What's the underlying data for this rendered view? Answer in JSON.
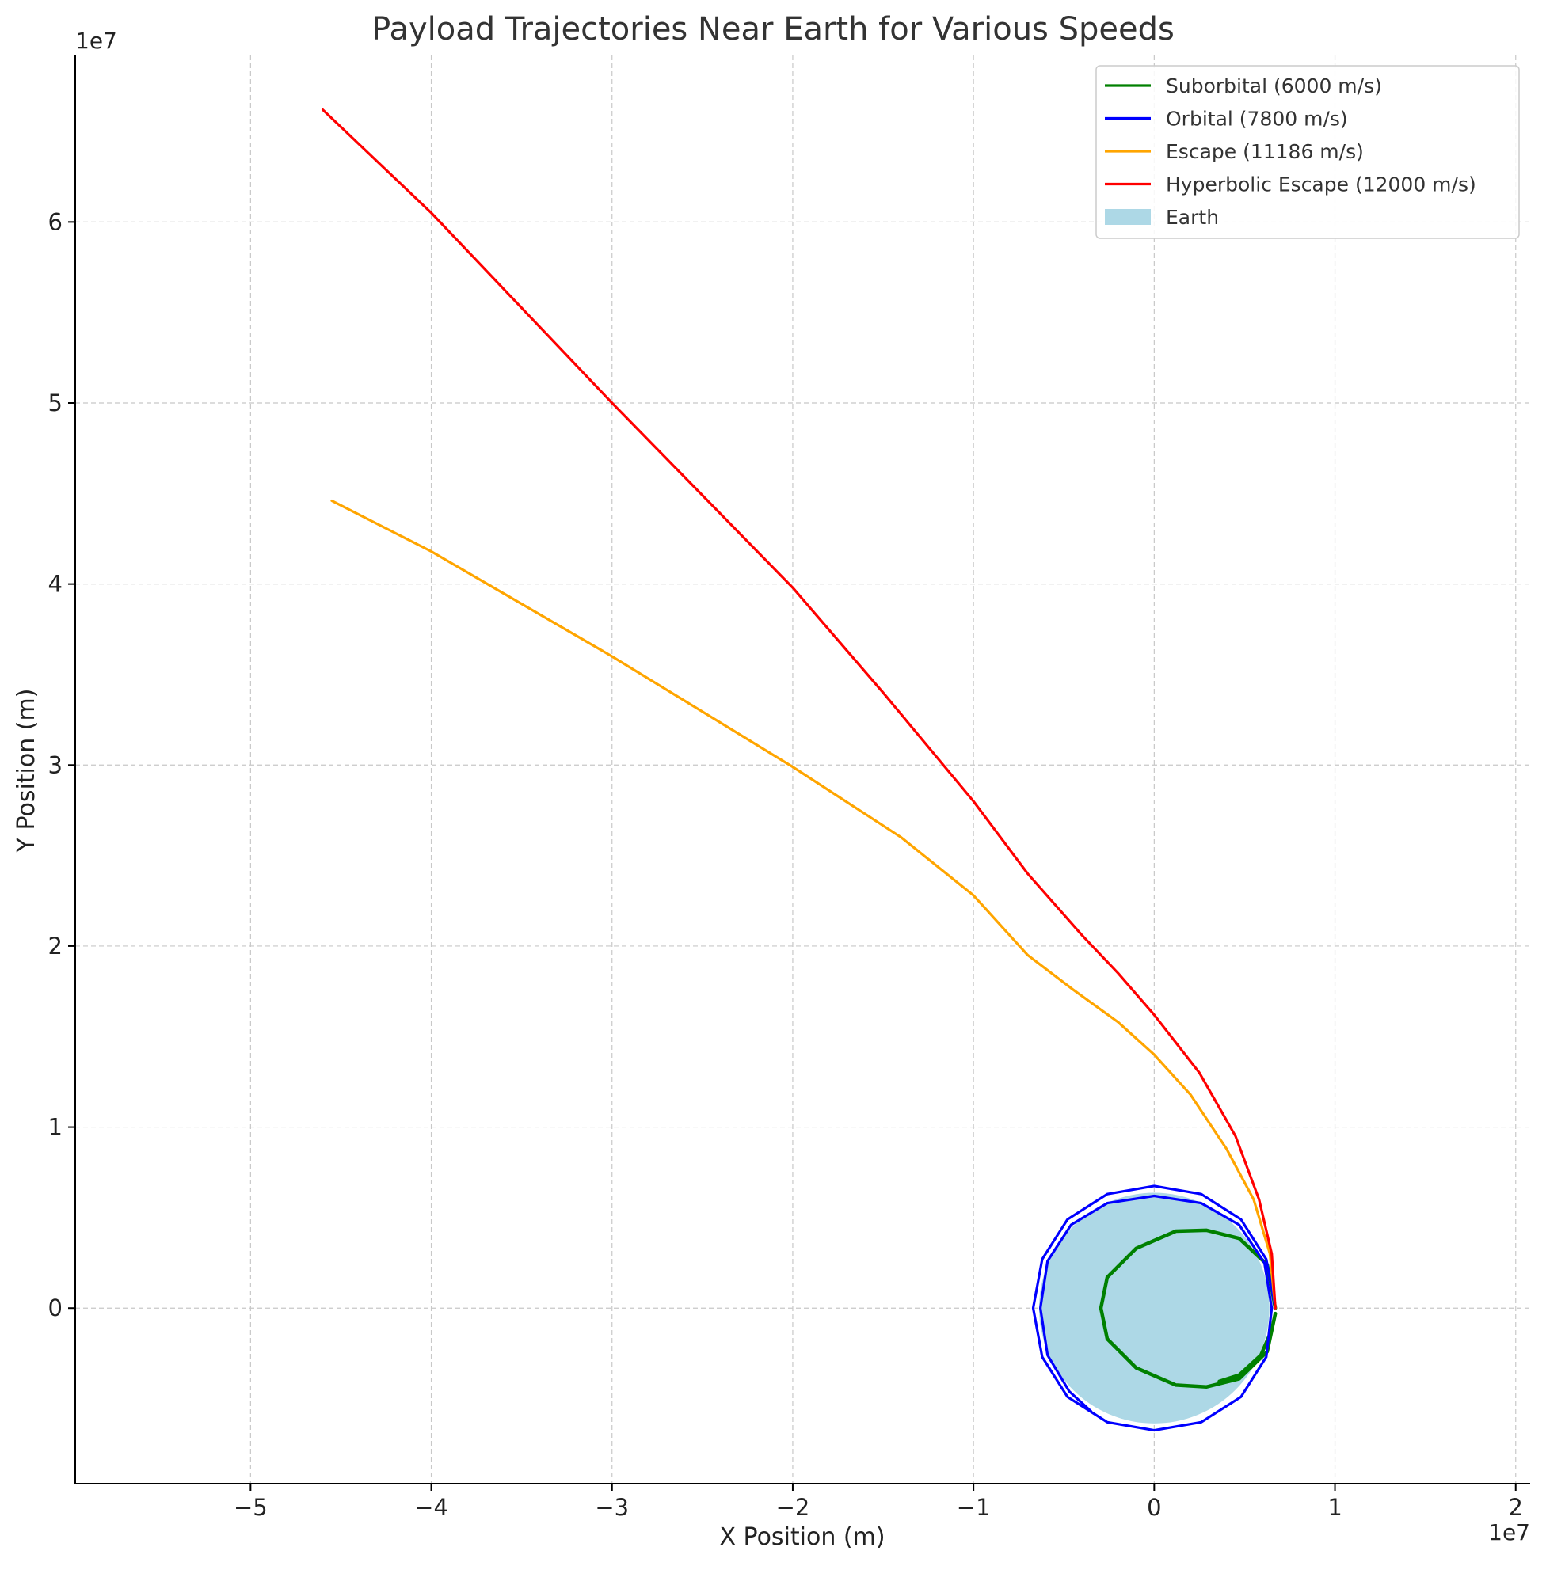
{
  "chart_data": {
    "type": "line",
    "title": "Payload Trajectories Near Earth for Various Speeds",
    "xlabel": "X Position (m)",
    "ylabel": "Y Position (m)",
    "x_offset_text": "1e7",
    "y_offset_text": "1e7",
    "xlim": [
      -59700000.0,
      20800000.0
    ],
    "ylim": [
      -9700000.0,
      69200000.0
    ],
    "xticks": [
      -50000000.0,
      -40000000.0,
      -30000000.0,
      -20000000.0,
      -10000000.0,
      0,
      10000000.0,
      20000000.0
    ],
    "xtick_labels": [
      "−5",
      "−4",
      "−3",
      "−2",
      "−1",
      "0",
      "1",
      "2"
    ],
    "yticks": [
      0,
      10000000.0,
      20000000.0,
      30000000.0,
      40000000.0,
      50000000.0,
      60000000.0
    ],
    "ytick_labels": [
      "0",
      "1",
      "2",
      "3",
      "4",
      "5",
      "6"
    ],
    "grid": true,
    "legend_position": "top-right",
    "earth": {
      "label": "Earth",
      "color": "#add8e6",
      "radius": 6371000.0,
      "center": [
        0,
        0
      ]
    },
    "series": [
      {
        "name": "Suborbital (6000 m/s)",
        "color": "#008000",
        "x": [
          6700000.0,
          6250000.0,
          4700000.0,
          2900000.0,
          1200000.0,
          -1000000.0,
          -2600000.0,
          -2950000.0,
          -2600000.0,
          -1000000.0,
          1200000.0,
          2900000.0,
          4700000.0,
          6250000.0,
          6700000.0,
          6500000.0,
          5900000.0,
          4700000.0,
          3600000.0
        ],
        "y": [
          0,
          2400000.0,
          3850000.0,
          4300000.0,
          4250000.0,
          3300000.0,
          1700000.0,
          0,
          -1700000.0,
          -3300000.0,
          -4250000.0,
          -4350000.0,
          -3900000.0,
          -2400000.0,
          -300000.0,
          -1200000.0,
          -2600000.0,
          -3700000.0,
          -4050000.0
        ]
      },
      {
        "name": "Orbital (7800 m/s)",
        "color": "#0000ff",
        "x": [
          6700000.0,
          6200000.0,
          4800000.0,
          2600000.0,
          0,
          -2600000.0,
          -4800000.0,
          -6200000.0,
          -6700000.0,
          -6200000.0,
          -4800000.0,
          -2600000.0,
          0,
          2600000.0,
          4800000.0,
          6200000.0,
          6500000.0,
          6100000.0,
          4700000.0,
          2600000.0,
          0,
          -2600000.0,
          -4600000.0,
          -5900000.0,
          -6300000.0,
          -5900000.0,
          -4700000.0,
          -3500000.0
        ],
        "y": [
          0,
          2700000.0,
          4900000.0,
          6300000.0,
          6750000.0,
          6300000.0,
          4900000.0,
          2700000.0,
          0,
          -2700000.0,
          -4900000.0,
          -6300000.0,
          -6750000.0,
          -6300000.0,
          -4900000.0,
          -2700000.0,
          0,
          2500000.0,
          4600000.0,
          5800000.0,
          6200000.0,
          5800000.0,
          4600000.0,
          2600000.0,
          0,
          -2600000.0,
          -4600000.0,
          -5700000.0
        ]
      },
      {
        "name": "Escape (11186 m/s)",
        "color": "#ffa500",
        "x": [
          6700000.0,
          6400000.0,
          5500000.0,
          4000000.0,
          2000000.0,
          0,
          -2000000.0,
          -4500000.0,
          -7000000.0,
          -10000000.0,
          -14000000.0,
          -20000000.0,
          -30000000.0,
          -40000000.0,
          -45500000.0
        ],
        "y": [
          0,
          3000000.0,
          6000000.0,
          8800000.0,
          11800000.0,
          14000000.0,
          15800000.0,
          17600000.0,
          19500000.0,
          22800000.0,
          26000000.0,
          29900000.0,
          36000000.0,
          41800000.0,
          44600000.0
        ]
      },
      {
        "name": "Hyperbolic Escape (12000 m/s)",
        "color": "#ff0000",
        "x": [
          6700000.0,
          6500000.0,
          5800000.0,
          4500000.0,
          2500000.0,
          0,
          -2000000.0,
          -4000000.0,
          -7000000.0,
          -10000000.0,
          -15000000.0,
          -20000000.0,
          -30000000.0,
          -40000000.0,
          -46000000.0
        ],
        "y": [
          0,
          3000000.0,
          6000000.0,
          9500000.0,
          13000000.0,
          16200000.0,
          18500000.0,
          20600000.0,
          24000000.0,
          28000000.0,
          34000000.0,
          39800000.0,
          50000000.0,
          60500000.0,
          66200000.0
        ]
      }
    ]
  }
}
